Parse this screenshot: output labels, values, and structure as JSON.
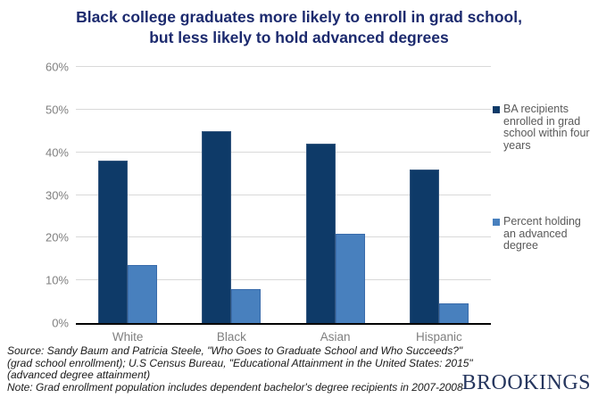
{
  "chart_data": {
    "type": "bar",
    "title": "Black college graduates more likely to enroll in grad school, but less likely to hold advanced degrees",
    "categories": [
      "White",
      "Black",
      "Asian",
      "Hispanic"
    ],
    "series": [
      {
        "name": "BA recipients enrolled in grad school within four years",
        "color": "#0E3A68",
        "values": [
          38,
          45,
          42,
          36
        ]
      },
      {
        "name": "Percent holding an advanced degree",
        "color": "#4880BE",
        "values": [
          13.5,
          8,
          21,
          4.5
        ]
      }
    ],
    "xlabel": "",
    "ylabel": "",
    "ylim": [
      0,
      60
    ],
    "ytick_step": 10,
    "ytick_labels": [
      "0%",
      "10%",
      "20%",
      "30%",
      "40%",
      "50%",
      "60%"
    ],
    "grid": true,
    "legend_position": "right"
  },
  "footer": {
    "source_lines": [
      "Source: Sandy Baum and Patricia Steele, \"Who Goes to Graduate School and Who Succeeds?\"",
      "(grad school enrollment); U.S Census Bureau, \"Educational Attainment in the United States: 2015\"",
      "(advanced degree attainment)",
      "Note: Grad enrollment population includes dependent bachelor's degree recipients in 2007-2008"
    ],
    "logo_text": "BROOKINGS"
  },
  "colors": {
    "title_text": "#1C2A6E",
    "series_dark": "#0E3A68",
    "series_light": "#4880BE",
    "axis_label_text": "#7F7F7F",
    "legend_text": "#595959",
    "gridline": "#D9D9D9",
    "logo_text": "#26365E"
  }
}
